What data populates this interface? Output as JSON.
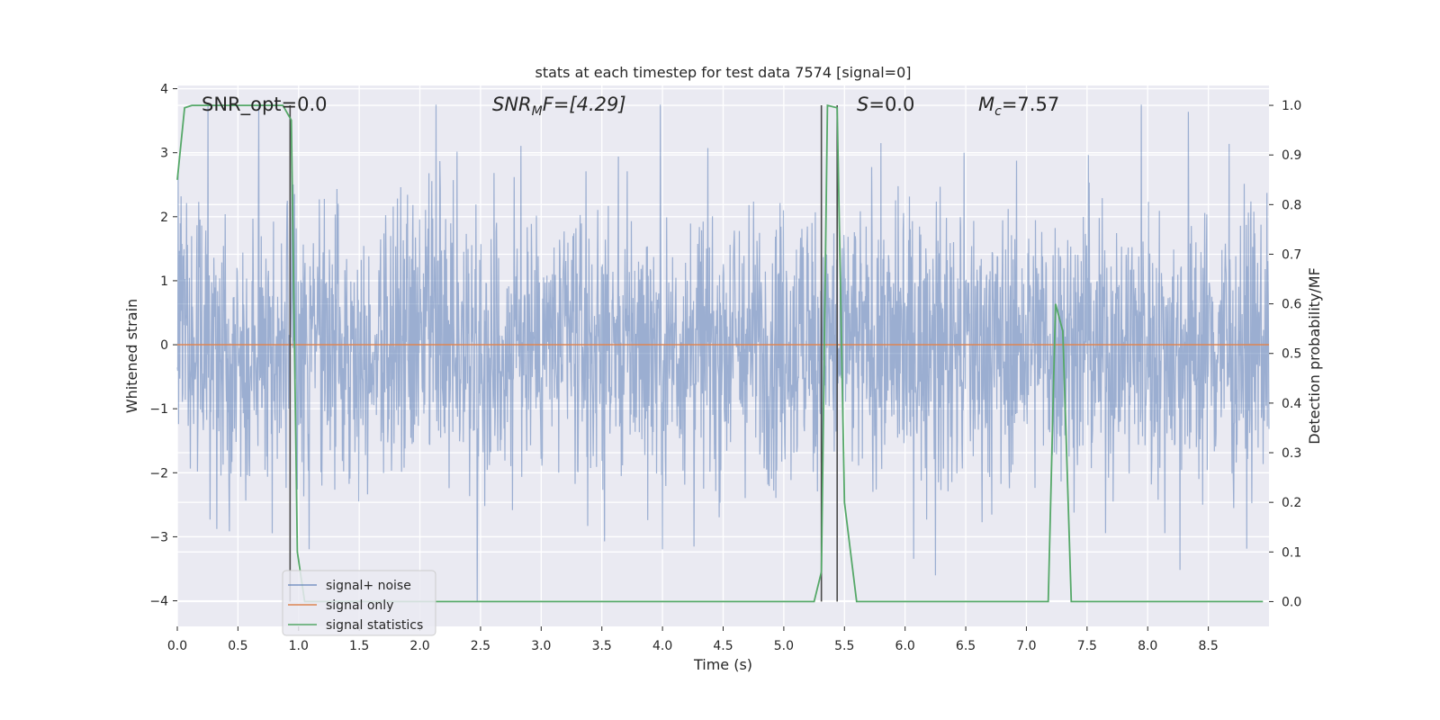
{
  "chart_data": {
    "type": "line",
    "title": "stats at each timestep for test data 7574 [signal=0]",
    "xlabel": "Time (s)",
    "ylabel_left": "Whitened strain",
    "ylabel_right": "Detection probability/MF",
    "xlim": [
      0.0,
      9.0
    ],
    "ylim_left": [
      -4.4,
      4.05
    ],
    "ylim_right": [
      -0.05,
      1.04
    ],
    "x_ticks": [
      "0.0",
      "0.5",
      "1.0",
      "1.5",
      "2.0",
      "2.5",
      "3.0",
      "3.5",
      "4.0",
      "4.5",
      "5.0",
      "5.5",
      "6.0",
      "6.5",
      "7.0",
      "7.5",
      "8.0",
      "8.5"
    ],
    "y_ticks_left": [
      "4",
      "3",
      "2",
      "1",
      "0",
      "−1",
      "−2",
      "−3",
      "−4"
    ],
    "y_ticks_right": [
      "1.0",
      "0.9",
      "0.8",
      "0.7",
      "0.6",
      "0.5",
      "0.4",
      "0.3",
      "0.2",
      "0.1",
      "0.0"
    ],
    "grid": true,
    "legend_placement": "lower-left",
    "annotations": {
      "snr_opt": "SNR_opt=0.0",
      "snr_mf_prefix": "SNR",
      "snr_mf_sub": "M",
      "snr_mf_suffix": "F=[4.29]",
      "s_prefix": "S",
      "s_suffix": "=0.0",
      "mc_prefix": "M",
      "mc_sub": "c",
      "mc_suffix": "=7.57"
    },
    "series": [
      {
        "name": "signal+ noise",
        "color": "#4c72b0",
        "kind": "noise",
        "x_range": [
          0.0,
          9.0
        ],
        "typical_amplitude": 1.7,
        "peak_min": -4.0,
        "peak_max": 3.75
      },
      {
        "name": "signal only",
        "color": "#dd8452",
        "x": [
          0.0,
          9.0
        ],
        "y": [
          0.0,
          0.0
        ]
      },
      {
        "name": "signal statistics",
        "color": "#55a868",
        "axis": "right",
        "x": [
          0.0,
          0.06,
          0.12,
          0.2,
          0.3,
          0.5,
          0.7,
          0.87,
          0.94,
          0.99,
          1.05,
          1.3,
          1.5,
          2.0,
          3.0,
          4.0,
          5.0,
          5.25,
          5.31,
          5.36,
          5.44,
          5.5,
          5.6,
          5.8,
          6.5,
          7.0,
          7.18,
          7.24,
          7.3,
          7.37,
          7.5,
          8.0,
          8.95
        ],
        "y": [
          0.85,
          0.995,
          1.0,
          1.0,
          1.0,
          1.0,
          1.0,
          1.0,
          0.97,
          0.1,
          0.0,
          0.0,
          0.0,
          0.0,
          0.0,
          0.0,
          0.0,
          0.0,
          0.06,
          1.0,
          0.995,
          0.2,
          0.0,
          0.0,
          0.0,
          0.0,
          0.0,
          0.6,
          0.545,
          0.0,
          0.0,
          0.0,
          0.0
        ]
      }
    ],
    "vertical_markers": [
      0.93,
      5.31,
      5.44
    ],
    "marker_color": "#4a4a4a"
  }
}
